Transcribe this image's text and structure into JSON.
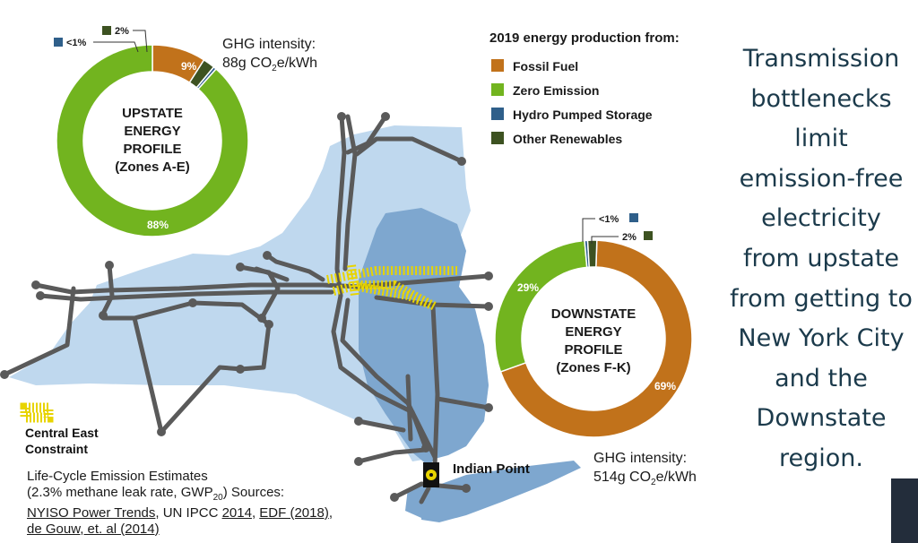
{
  "right_panel": {
    "lines": [
      "Transmission",
      "bottlenecks",
      "limit",
      "emission-free",
      "electricity",
      "from upstate",
      "from getting to",
      "New York City",
      "and the",
      "Downstate",
      "region."
    ]
  },
  "legend": {
    "title": "2019 energy production from:",
    "items": [
      {
        "label": "Fossil Fuel",
        "color": "#c1721b"
      },
      {
        "label": "Zero Emission",
        "color": "#72b41f"
      },
      {
        "label": "Hydro Pumped Storage",
        "color": "#2f5f8a"
      },
      {
        "label": "Other Renewables",
        "color": "#3d5221"
      }
    ]
  },
  "constraint_label": {
    "line1": "Central East",
    "line2": "Constraint",
    "color": "#e8d400"
  },
  "indian_point": {
    "label": "Indian Point"
  },
  "sources": {
    "line1": "Life-Cycle Emission Estimates",
    "line2_pre": "(2.3% methane leak rate, GWP",
    "line2_sub": "20",
    "line2_post": ") Sources:",
    "link_nyiso": "NYISO Power Trends",
    "text_ipcc": ", UN IPCC ",
    "link_2014": "2014",
    "sep1": ", ",
    "link_edf": "EDF (2018)",
    "sep2": ",",
    "link_degouw": "de Gouw, et. al (2014)"
  },
  "chart_data": [
    {
      "type": "pie",
      "title": "UPSTATE ENERGY PROFILE (Zones A-E)",
      "title_lines": [
        "UPSTATE",
        "ENERGY",
        "PROFILE",
        "(Zones A-E)"
      ],
      "intensity_label": "GHG intensity:",
      "intensity_value": "88g CO",
      "intensity_sub": "2",
      "intensity_unit": "e/kWh",
      "categories": [
        "Fossil Fuel",
        "Other Renewables",
        "Hydro Pumped Storage",
        "Zero Emission"
      ],
      "values": [
        9,
        2,
        0.5,
        88
      ],
      "labels": [
        "9%",
        "2%",
        "<1%",
        "88%"
      ]
    },
    {
      "type": "pie",
      "title": "DOWNSTATE ENERGY PROFILE (Zones F-K)",
      "title_lines": [
        "DOWNSTATE",
        "ENERGY",
        "PROFILE",
        "(Zones F-K)"
      ],
      "intensity_label": "GHG intensity:",
      "intensity_value": "514g CO",
      "intensity_sub": "2",
      "intensity_unit": "e/kWh",
      "categories": [
        "Fossil Fuel",
        "Zero Emission",
        "Hydro Pumped Storage",
        "Other Renewables"
      ],
      "values": [
        69,
        29,
        0.5,
        1.5
      ],
      "labels": [
        "69%",
        "29%",
        "<1%",
        "2%"
      ]
    }
  ]
}
